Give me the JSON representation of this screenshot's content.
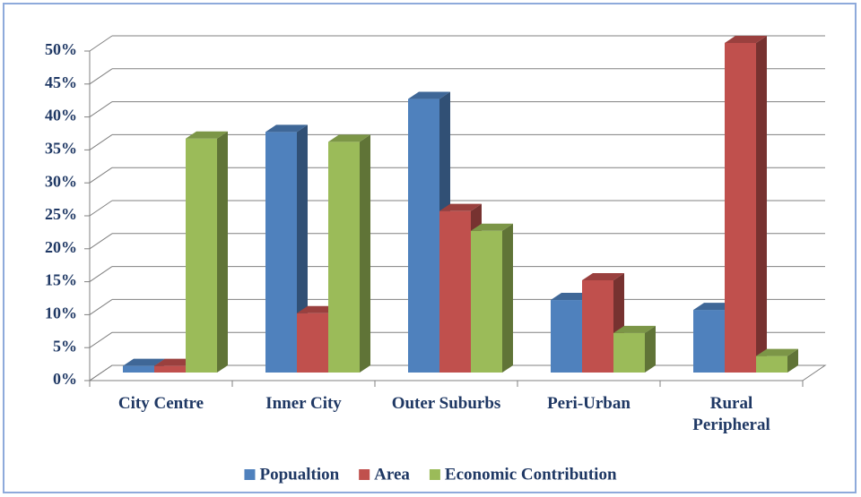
{
  "chart_data": {
    "type": "bar3d",
    "categories": [
      "City Centre",
      "Inner City",
      "Outer Suburbs",
      "Peri-Urban",
      "Rural Peripheral"
    ],
    "series": [
      {
        "name": "Popualtion",
        "color": "#4f81bd",
        "values": [
          1,
          36.5,
          41.5,
          11,
          9.5
        ]
      },
      {
        "name": "Area",
        "color": "#c0504d",
        "values": [
          1,
          9,
          24.5,
          14,
          50
        ]
      },
      {
        "name": "Economic Contribution",
        "color": "#9bbb59",
        "values": [
          35.5,
          35,
          21.5,
          6,
          2.5
        ]
      }
    ],
    "ylim": [
      0,
      50
    ],
    "yticks": [
      {
        "value": 0,
        "label": "0%"
      },
      {
        "value": 5,
        "label": "5%"
      },
      {
        "value": 10,
        "label": "10%"
      },
      {
        "value": 15,
        "label": "15%"
      },
      {
        "value": 20,
        "label": "20%"
      },
      {
        "value": 25,
        "label": "25%"
      },
      {
        "value": 30,
        "label": "30%"
      },
      {
        "value": 35,
        "label": "35%"
      },
      {
        "value": 40,
        "label": "40%"
      },
      {
        "value": 45,
        "label": "45%"
      },
      {
        "value": 50,
        "label": "50%"
      }
    ],
    "grid": true,
    "legend": "bottom"
  }
}
